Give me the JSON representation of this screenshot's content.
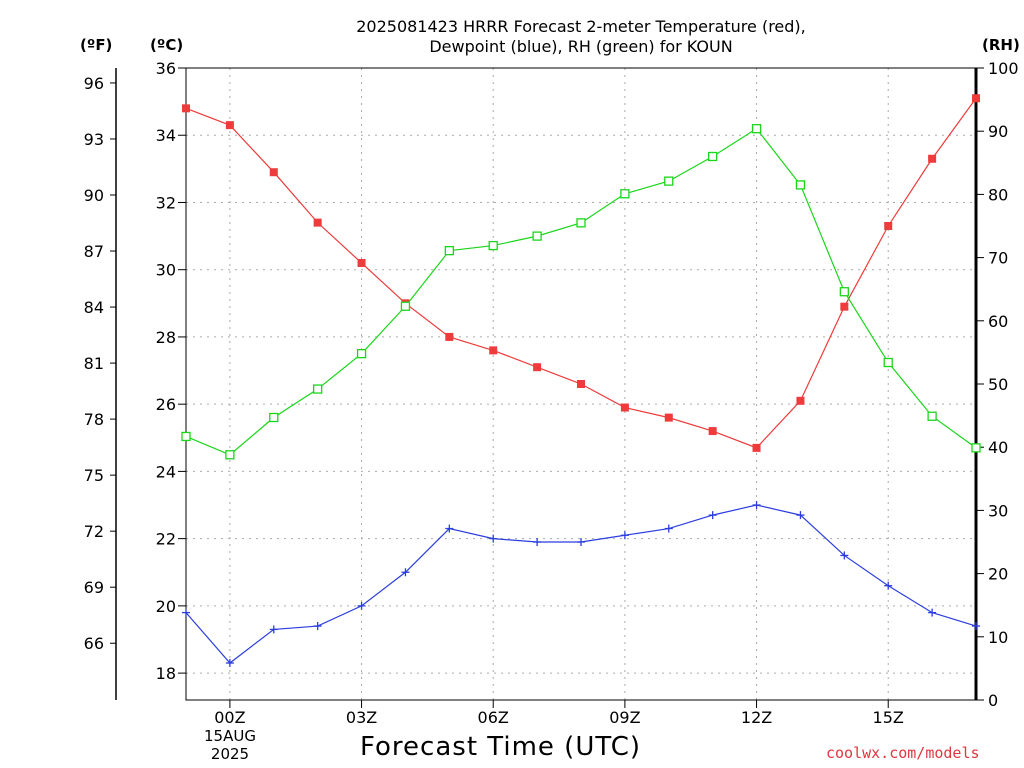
{
  "title_lines": [
    "2025081423 HRRR Forecast 2-meter Temperature (red),",
    "Dewpoint (blue), RH (green) for KOUN"
  ],
  "unit_labels": {
    "fahrenheit": "(ºF)",
    "celsius": "(ºC)",
    "rh": "(RH)"
  },
  "x_axis_title": "Forecast Time (UTC)",
  "credit": "coolwx.com/models",
  "date_label": {
    "line1": "15AUG",
    "line2": "2025"
  },
  "colors": {
    "temperature": "#ee3b3b",
    "dewpoint": "#2b3ddf",
    "rh": "#1ad61a",
    "grid": "#aaaaaa"
  },
  "chart_data": {
    "type": "line",
    "title": "2025081423 HRRR Forecast 2-meter Temperature (red), Dewpoint (blue), RH (green) for KOUN",
    "xlabel": "Forecast Time (UTC)",
    "x_hours": [
      -1,
      0,
      1,
      2,
      3,
      4,
      5,
      6,
      7,
      8,
      9,
      10,
      11,
      12,
      13,
      14,
      15,
      16,
      17
    ],
    "x_ticks": [
      {
        "hour": 0,
        "label": "00Z"
      },
      {
        "hour": 3,
        "label": "03Z"
      },
      {
        "hour": 6,
        "label": "06Z"
      },
      {
        "hour": 9,
        "label": "09Z"
      },
      {
        "hour": 12,
        "label": "12Z"
      },
      {
        "hour": 15,
        "label": "15Z"
      }
    ],
    "xlim": [
      -1,
      17
    ],
    "left_axis_c": {
      "label": "(ºC)",
      "ylim": [
        17.2,
        36
      ],
      "ticks": [
        18,
        20,
        22,
        24,
        26,
        28,
        30,
        32,
        34,
        36
      ]
    },
    "left_axis_f": {
      "label": "(ºF)",
      "ticks": [
        66,
        69,
        72,
        75,
        78,
        81,
        84,
        87,
        90,
        93,
        96
      ]
    },
    "right_axis_rh": {
      "label": "(RH)",
      "ylim": [
        0,
        100
      ],
      "ticks": [
        0,
        10,
        20,
        30,
        40,
        50,
        60,
        70,
        80,
        90,
        100
      ]
    },
    "grid": true,
    "series": [
      {
        "key": "temperature",
        "axis": "c",
        "marker": "filled-square",
        "values": [
          34.8,
          34.3,
          32.9,
          31.4,
          30.2,
          29.0,
          28.0,
          27.6,
          27.1,
          26.6,
          25.9,
          25.6,
          25.2,
          24.7,
          26.1,
          28.9,
          31.3,
          33.3,
          35.1
        ]
      },
      {
        "key": "dewpoint",
        "axis": "c",
        "marker": "plus",
        "values": [
          19.8,
          18.3,
          19.3,
          19.4,
          20.0,
          21.0,
          22.3,
          22.0,
          21.9,
          21.9,
          22.1,
          22.3,
          22.7,
          23.0,
          22.7,
          21.5,
          20.6,
          19.8,
          19.4
        ]
      },
      {
        "key": "rh",
        "axis": "rh",
        "marker": "open-square",
        "values": [
          41.7,
          38.8,
          44.7,
          49.2,
          54.8,
          62.3,
          71.1,
          71.9,
          73.4,
          75.5,
          80.1,
          82.1,
          86.0,
          90.4,
          81.5,
          64.6,
          53.4,
          44.9,
          39.9
        ]
      }
    ]
  }
}
